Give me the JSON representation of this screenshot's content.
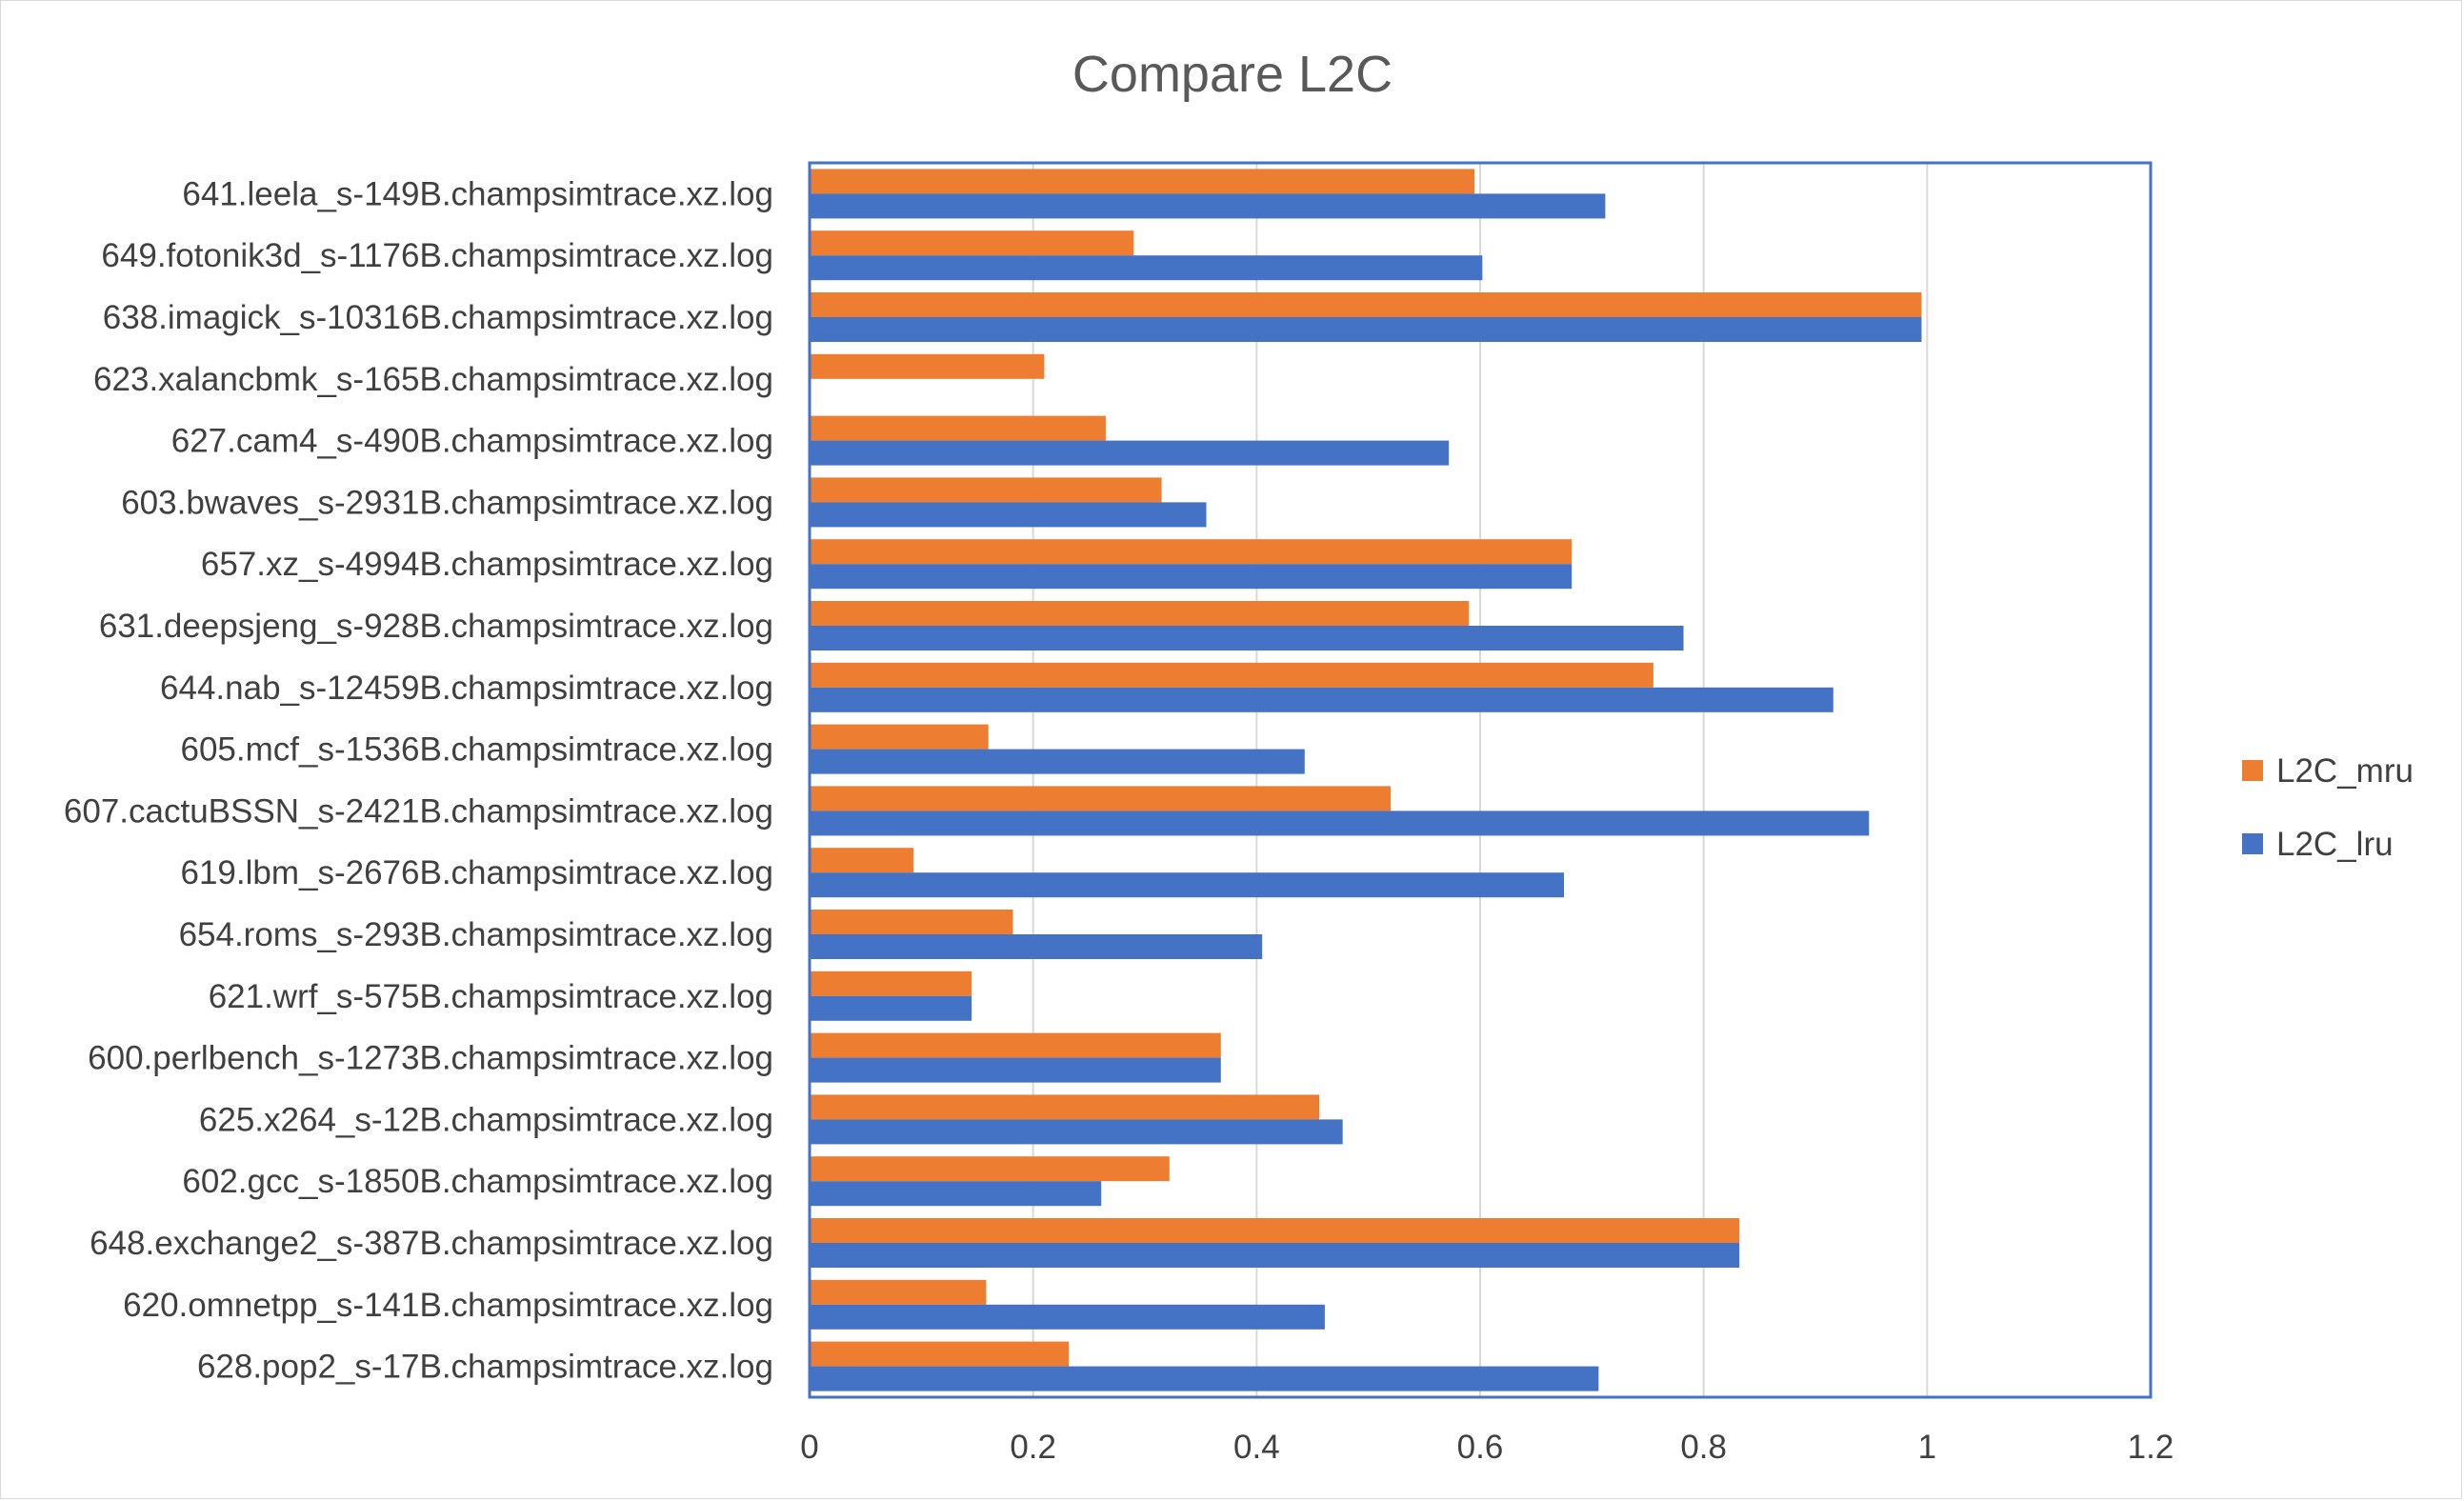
{
  "chart_data": {
    "type": "bar",
    "orientation": "horizontal",
    "title": "Compare L2C",
    "xlabel": "",
    "ylabel": "",
    "xlim": [
      0,
      1.2
    ],
    "xticks": [
      "0",
      "0.2",
      "0.4",
      "0.6",
      "0.8",
      "1",
      "1.2"
    ],
    "grid": true,
    "legend_position": "right",
    "categories": [
      "641.leela_s-149B.champsimtrace.xz.log",
      "649.fotonik3d_s-1176B.champsimtrace.xz.log",
      "638.imagick_s-10316B.champsimtrace.xz.log",
      "623.xalancbmk_s-165B.champsimtrace.xz.log",
      "627.cam4_s-490B.champsimtrace.xz.log",
      "603.bwaves_s-2931B.champsimtrace.xz.log",
      "657.xz_s-4994B.champsimtrace.xz.log",
      "631.deepsjeng_s-928B.champsimtrace.xz.log",
      "644.nab_s-12459B.champsimtrace.xz.log",
      "605.mcf_s-1536B.champsimtrace.xz.log",
      "607.cactuBSSN_s-2421B.champsimtrace.xz.log",
      "619.lbm_s-2676B.champsimtrace.xz.log",
      "654.roms_s-293B.champsimtrace.xz.log",
      "621.wrf_s-575B.champsimtrace.xz.log",
      "600.perlbench_s-1273B.champsimtrace.xz.log",
      "625.x264_s-12B.champsimtrace.xz.log",
      "602.gcc_s-1850B.champsimtrace.xz.log",
      "648.exchange2_s-387B.champsimtrace.xz.log",
      "620.omnetpp_s-141B.champsimtrace.xz.log",
      "628.pop2_s-17B.champsimtrace.xz.log"
    ],
    "series": [
      {
        "name": "L2C_mru",
        "color": "#ED7D31",
        "values": [
          0.595,
          0.29,
          0.995,
          0.21,
          0.265,
          0.315,
          0.682,
          0.59,
          0.755,
          0.16,
          0.52,
          0.093,
          0.182,
          0.145,
          0.368,
          0.456,
          0.322,
          0.832,
          0.158,
          0.232
        ]
      },
      {
        "name": "L2C_lru",
        "color": "#4472C4",
        "values": [
          0.712,
          0.602,
          0.995,
          0.0,
          0.572,
          0.355,
          0.682,
          0.782,
          0.916,
          0.443,
          0.948,
          0.675,
          0.405,
          0.145,
          0.368,
          0.477,
          0.261,
          0.832,
          0.461,
          0.706
        ]
      }
    ]
  }
}
